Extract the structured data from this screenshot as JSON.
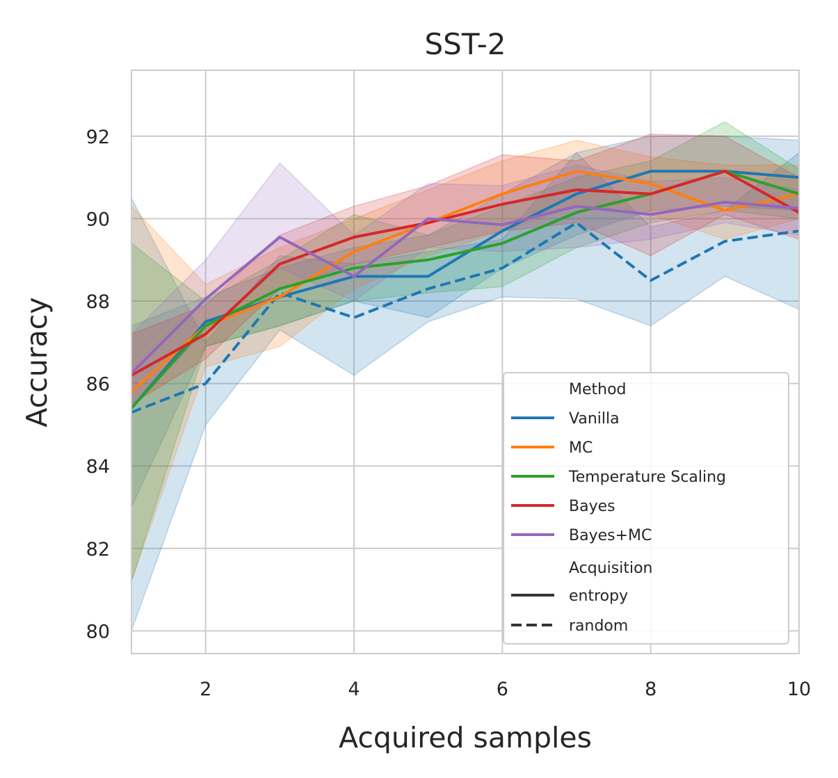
{
  "chart_data": {
    "type": "line",
    "title": "SST-2",
    "xlabel": "Acquired samples",
    "ylabel": "Accuracy",
    "xlim": [
      1,
      10
    ],
    "ylim": [
      79.45,
      93.6
    ],
    "xticks": [
      2,
      4,
      6,
      8,
      10
    ],
    "xtick_labels": [
      "2",
      "4",
      "6",
      "8",
      "10"
    ],
    "yticks": [
      80,
      82,
      84,
      86,
      88,
      90,
      92
    ],
    "ytick_labels": [
      "80",
      "82",
      "84",
      "86",
      "88",
      "90",
      "92"
    ],
    "grid": true,
    "legend": {
      "placement": "lower-right",
      "method_title": "Method",
      "acquisition_title": "Acquisition",
      "methods": [
        {
          "name": "Vanilla",
          "color": "#1f77b4"
        },
        {
          "name": "MC",
          "color": "#ff7f0e"
        },
        {
          "name": "Temperature Scaling",
          "color": "#2ca02c"
        },
        {
          "name": "Bayes",
          "color": "#d62728"
        },
        {
          "name": "Bayes+MC",
          "color": "#9467bd"
        }
      ],
      "styles": [
        {
          "name": "entropy",
          "dash": "solid"
        },
        {
          "name": "random",
          "dash": "dashed"
        }
      ]
    },
    "x": [
      1,
      2,
      3,
      4,
      5,
      6,
      7,
      8,
      9,
      10
    ],
    "series": [
      {
        "name": "Vanilla",
        "acquisition": "random",
        "color": "#1f77b4",
        "dash": "dashed",
        "values": [
          85.3,
          86.0,
          88.2,
          87.6,
          88.3,
          88.8,
          89.9,
          88.5,
          89.45,
          89.7
        ],
        "lower": [
          80.0,
          85.0,
          87.3,
          86.2,
          87.5,
          88.1,
          88.05,
          87.4,
          88.6,
          87.8
        ],
        "upper": [
          90.5,
          87.0,
          89.1,
          88.9,
          89.2,
          89.5,
          91.6,
          89.8,
          90.2,
          91.6
        ]
      },
      {
        "name": "Vanilla",
        "acquisition": "entropy",
        "color": "#1f77b4",
        "dash": "solid",
        "values": [
          85.4,
          87.5,
          88.1,
          88.6,
          88.6,
          89.7,
          90.6,
          91.15,
          91.15,
          91.0
        ],
        "lower": [
          83.0,
          86.9,
          87.4,
          88.0,
          87.6,
          88.8,
          89.6,
          90.2,
          90.3,
          90.2
        ],
        "upper": [
          87.4,
          88.1,
          88.8,
          89.3,
          89.6,
          90.6,
          91.6,
          92.0,
          92.0,
          91.9
        ]
      },
      {
        "name": "MC",
        "acquisition": "entropy",
        "color": "#ff7f0e",
        "dash": "solid",
        "values": [
          85.8,
          87.4,
          88.1,
          89.2,
          89.9,
          90.6,
          91.15,
          90.85,
          90.2,
          90.6
        ],
        "lower": [
          81.2,
          86.4,
          86.9,
          88.3,
          89.1,
          89.7,
          90.3,
          90.1,
          89.5,
          90.0
        ],
        "upper": [
          90.3,
          88.4,
          89.3,
          90.0,
          90.7,
          91.4,
          91.9,
          91.5,
          91.3,
          91.3
        ]
      },
      {
        "name": "Temperature Scaling",
        "acquisition": "entropy",
        "color": "#2ca02c",
        "dash": "solid",
        "values": [
          85.4,
          87.4,
          88.3,
          88.8,
          89.0,
          89.4,
          90.15,
          90.6,
          91.15,
          90.6
        ],
        "lower": [
          81.2,
          86.9,
          87.4,
          88.0,
          88.2,
          88.35,
          89.3,
          89.9,
          90.2,
          90.0
        ],
        "upper": [
          89.4,
          88.0,
          89.0,
          90.1,
          89.6,
          90.3,
          91.0,
          91.4,
          92.35,
          91.2
        ]
      },
      {
        "name": "Bayes",
        "acquisition": "entropy",
        "color": "#d62728",
        "dash": "solid",
        "values": [
          86.2,
          87.2,
          88.9,
          89.55,
          89.9,
          90.35,
          90.7,
          90.6,
          91.15,
          90.15
        ],
        "lower": [
          85.5,
          86.6,
          88.3,
          88.9,
          89.3,
          89.7,
          89.9,
          89.1,
          90.1,
          89.5
        ],
        "upper": [
          87.2,
          87.9,
          89.6,
          90.3,
          90.8,
          91.55,
          91.4,
          92.05,
          92.0,
          91.0
        ]
      },
      {
        "name": "Bayes+MC",
        "acquisition": "entropy",
        "color": "#9467bd",
        "dash": "solid",
        "values": [
          86.25,
          88.05,
          89.55,
          88.6,
          90.0,
          89.85,
          90.3,
          90.1,
          90.4,
          90.25
        ],
        "lower": [
          85.4,
          87.3,
          88.8,
          88.0,
          89.3,
          89.2,
          89.3,
          89.5,
          89.9,
          89.6
        ],
        "upper": [
          87.2,
          89.0,
          91.35,
          89.6,
          90.85,
          90.8,
          91.3,
          90.9,
          91.0,
          90.7
        ]
      }
    ]
  }
}
